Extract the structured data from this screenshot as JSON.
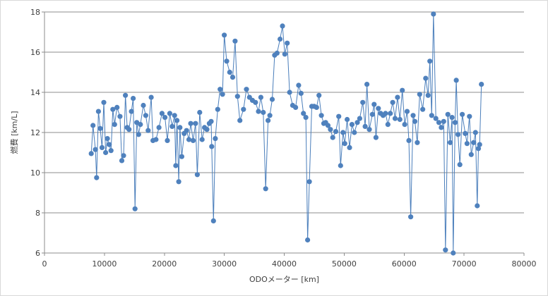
{
  "chart_data": {
    "type": "scatter",
    "title": "",
    "xlabel": "ODOメーター [km]",
    "ylabel": "燃費 [km/L]",
    "xlim": [
      0,
      80000
    ],
    "ylim": [
      6,
      18
    ],
    "xticks": [
      0,
      10000,
      20000,
      30000,
      40000,
      50000,
      60000,
      70000,
      80000
    ],
    "yticks": [
      6,
      8,
      10,
      12,
      14,
      16,
      18
    ],
    "grid": "horizontal",
    "legend": "none",
    "line_color": "#4a7ebb",
    "marker_color": "#4f81bd",
    "series": [
      {
        "values": [
          [
            7800,
            10.95
          ],
          [
            8100,
            12.35
          ],
          [
            8500,
            11.15
          ],
          [
            8700,
            9.75
          ],
          [
            9000,
            13.05
          ],
          [
            9300,
            12.2
          ],
          [
            9600,
            11.25
          ],
          [
            9900,
            13.5
          ],
          [
            10200,
            11.0
          ],
          [
            10500,
            11.7
          ],
          [
            10800,
            11.4
          ],
          [
            11100,
            11.1
          ],
          [
            11400,
            13.15
          ],
          [
            11700,
            12.4
          ],
          [
            12100,
            13.25
          ],
          [
            12600,
            12.8
          ],
          [
            12900,
            10.6
          ],
          [
            13200,
            10.85
          ],
          [
            13500,
            13.85
          ],
          [
            13800,
            12.25
          ],
          [
            14100,
            12.15
          ],
          [
            14500,
            13.05
          ],
          [
            14800,
            13.7
          ],
          [
            15100,
            8.2
          ],
          [
            15400,
            12.5
          ],
          [
            15700,
            11.9
          ],
          [
            16000,
            12.4
          ],
          [
            16500,
            13.35
          ],
          [
            16900,
            12.85
          ],
          [
            17300,
            12.1
          ],
          [
            17800,
            13.75
          ],
          [
            18100,
            11.6
          ],
          [
            18600,
            11.65
          ],
          [
            19100,
            12.25
          ],
          [
            19600,
            12.95
          ],
          [
            20100,
            12.75
          ],
          [
            20500,
            11.6
          ],
          [
            20900,
            12.95
          ],
          [
            21300,
            12.3
          ],
          [
            21700,
            12.85
          ],
          [
            21900,
            10.35
          ],
          [
            22100,
            12.6
          ],
          [
            22400,
            9.55
          ],
          [
            22600,
            12.25
          ],
          [
            22900,
            10.8
          ],
          [
            23300,
            11.95
          ],
          [
            23700,
            12.1
          ],
          [
            24100,
            11.65
          ],
          [
            24400,
            12.45
          ],
          [
            24800,
            11.6
          ],
          [
            25200,
            12.45
          ],
          [
            25500,
            9.9
          ],
          [
            25900,
            13.0
          ],
          [
            26300,
            11.65
          ],
          [
            26700,
            12.25
          ],
          [
            27100,
            12.15
          ],
          [
            27500,
            12.45
          ],
          [
            27800,
            12.55
          ],
          [
            27900,
            11.3
          ],
          [
            28200,
            7.6
          ],
          [
            28500,
            11.7
          ],
          [
            28900,
            13.15
          ],
          [
            29300,
            14.15
          ],
          [
            29700,
            13.9
          ],
          [
            30000,
            16.85
          ],
          [
            30400,
            15.55
          ],
          [
            30900,
            15.0
          ],
          [
            31400,
            14.75
          ],
          [
            31800,
            16.55
          ],
          [
            32200,
            13.8
          ],
          [
            32600,
            12.6
          ],
          [
            33200,
            13.15
          ],
          [
            33700,
            14.15
          ],
          [
            34200,
            13.75
          ],
          [
            34700,
            13.6
          ],
          [
            35200,
            13.5
          ],
          [
            35700,
            13.05
          ],
          [
            36100,
            13.75
          ],
          [
            36500,
            13.0
          ],
          [
            36900,
            9.2
          ],
          [
            37300,
            12.6
          ],
          [
            37600,
            12.85
          ],
          [
            38000,
            13.65
          ],
          [
            38400,
            15.85
          ],
          [
            38800,
            15.95
          ],
          [
            39300,
            16.65
          ],
          [
            39700,
            17.3
          ],
          [
            40100,
            15.9
          ],
          [
            40500,
            16.45
          ],
          [
            40900,
            14.0
          ],
          [
            41400,
            13.35
          ],
          [
            41900,
            13.25
          ],
          [
            42400,
            14.35
          ],
          [
            42800,
            13.95
          ],
          [
            43200,
            12.95
          ],
          [
            43600,
            12.75
          ],
          [
            43900,
            6.65
          ],
          [
            44200,
            9.55
          ],
          [
            44600,
            13.3
          ],
          [
            45000,
            13.3
          ],
          [
            45400,
            13.25
          ],
          [
            45800,
            13.85
          ],
          [
            46200,
            12.85
          ],
          [
            46600,
            12.45
          ],
          [
            46900,
            12.5
          ],
          [
            47300,
            12.35
          ],
          [
            47700,
            12.15
          ],
          [
            48100,
            11.75
          ],
          [
            48600,
            12.05
          ],
          [
            49100,
            12.8
          ],
          [
            49400,
            10.35
          ],
          [
            49800,
            12.0
          ],
          [
            50100,
            11.45
          ],
          [
            50500,
            12.65
          ],
          [
            50900,
            11.25
          ],
          [
            51300,
            12.4
          ],
          [
            51700,
            12.0
          ],
          [
            52200,
            12.5
          ],
          [
            52600,
            12.7
          ],
          [
            53100,
            13.5
          ],
          [
            53500,
            12.3
          ],
          [
            53800,
            14.4
          ],
          [
            54200,
            12.15
          ],
          [
            54700,
            12.9
          ],
          [
            55000,
            13.4
          ],
          [
            55300,
            11.75
          ],
          [
            55700,
            13.2
          ],
          [
            56100,
            12.95
          ],
          [
            56500,
            12.85
          ],
          [
            56900,
            12.95
          ],
          [
            57300,
            12.4
          ],
          [
            57700,
            12.95
          ],
          [
            58100,
            13.5
          ],
          [
            58500,
            12.7
          ],
          [
            58900,
            13.75
          ],
          [
            59300,
            12.65
          ],
          [
            59700,
            14.1
          ],
          [
            60100,
            12.4
          ],
          [
            60500,
            13.05
          ],
          [
            60800,
            11.6
          ],
          [
            61100,
            7.8
          ],
          [
            61500,
            12.85
          ],
          [
            61800,
            12.55
          ],
          [
            62200,
            11.5
          ],
          [
            62600,
            13.9
          ],
          [
            63100,
            13.15
          ],
          [
            63600,
            14.7
          ],
          [
            64000,
            13.85
          ],
          [
            64300,
            15.55
          ],
          [
            64600,
            12.85
          ],
          [
            64900,
            17.9
          ],
          [
            65300,
            12.7
          ],
          [
            65800,
            12.5
          ],
          [
            66200,
            12.25
          ],
          [
            66600,
            12.55
          ],
          [
            66900,
            6.15
          ],
          [
            67300,
            12.9
          ],
          [
            67700,
            11.5
          ],
          [
            68000,
            12.75
          ],
          [
            68200,
            6.0
          ],
          [
            68500,
            12.5
          ],
          [
            68700,
            14.6
          ],
          [
            69000,
            11.9
          ],
          [
            69300,
            10.4
          ],
          [
            69700,
            12.9
          ],
          [
            70200,
            11.95
          ],
          [
            70500,
            11.45
          ],
          [
            70900,
            12.8
          ],
          [
            71200,
            10.9
          ],
          [
            71600,
            11.5
          ],
          [
            71900,
            12.0
          ],
          [
            72200,
            8.35
          ],
          [
            72400,
            11.2
          ],
          [
            72600,
            11.4
          ],
          [
            72900,
            14.4
          ]
        ]
      }
    ]
  }
}
